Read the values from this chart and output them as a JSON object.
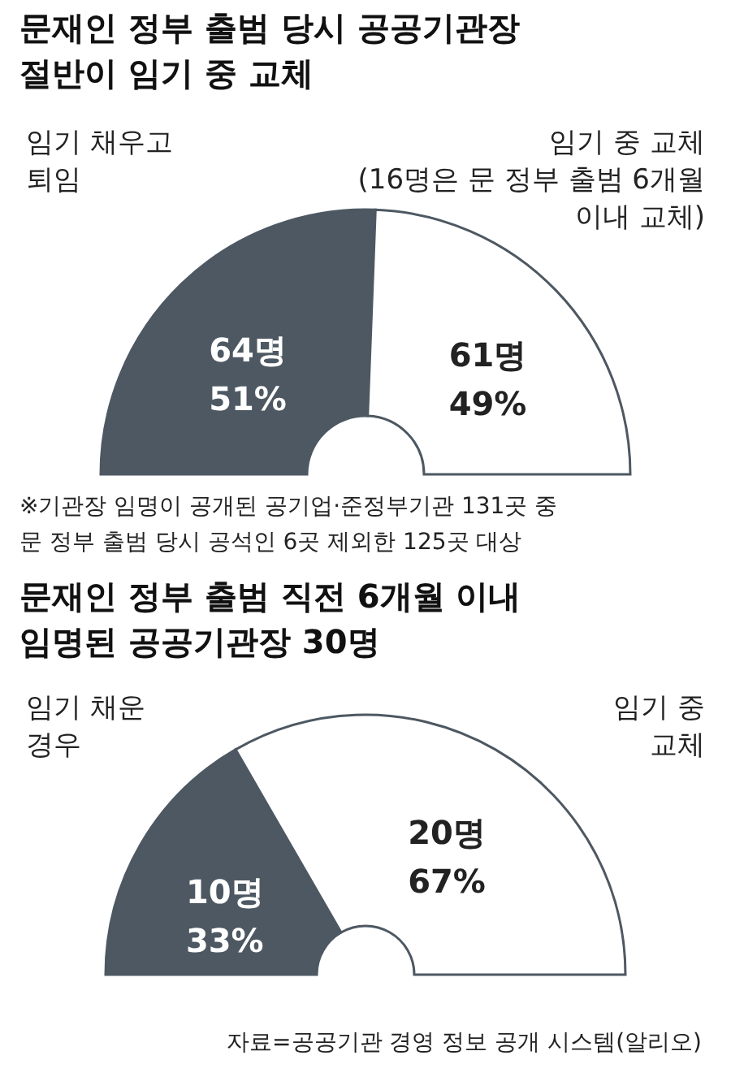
{
  "chart_data": [
    {
      "type": "donut",
      "title": "문재인 정부 출범 당시 공공기관장\n절반이 임기 중 교체",
      "categories": [
        "임기 채우고\n퇴임",
        "임기 중 교체\n(16명은 문 정부 출범 6개월\n이내 교체)"
      ],
      "values": [
        64,
        61
      ],
      "colors": [
        "#4d5862",
        "#ffffff"
      ],
      "value_labels": [
        "64명\n51%",
        "61명\n49%"
      ],
      "legend": false,
      "annotations": [
        "※기관장 임명이 공개된 공기업·준정부기관 131곳 중\n문 정부 출범 당시 공석인 6곳 제외한 125곳 대상"
      ]
    },
    {
      "type": "donut",
      "title": "문재인 정부 출범 직전 6개월 이내\n임명된 공공기관장 30명",
      "categories": [
        "임기 채운\n경우",
        "임기 중\n교체"
      ],
      "values": [
        10,
        20
      ],
      "colors": [
        "#4d5862",
        "#ffffff"
      ],
      "value_labels": [
        "10명\n33%",
        "20명\n67%"
      ],
      "legend": false,
      "annotations": [
        "자료=공공기관 경영 정보 공개 시스템(알리오)"
      ]
    }
  ]
}
